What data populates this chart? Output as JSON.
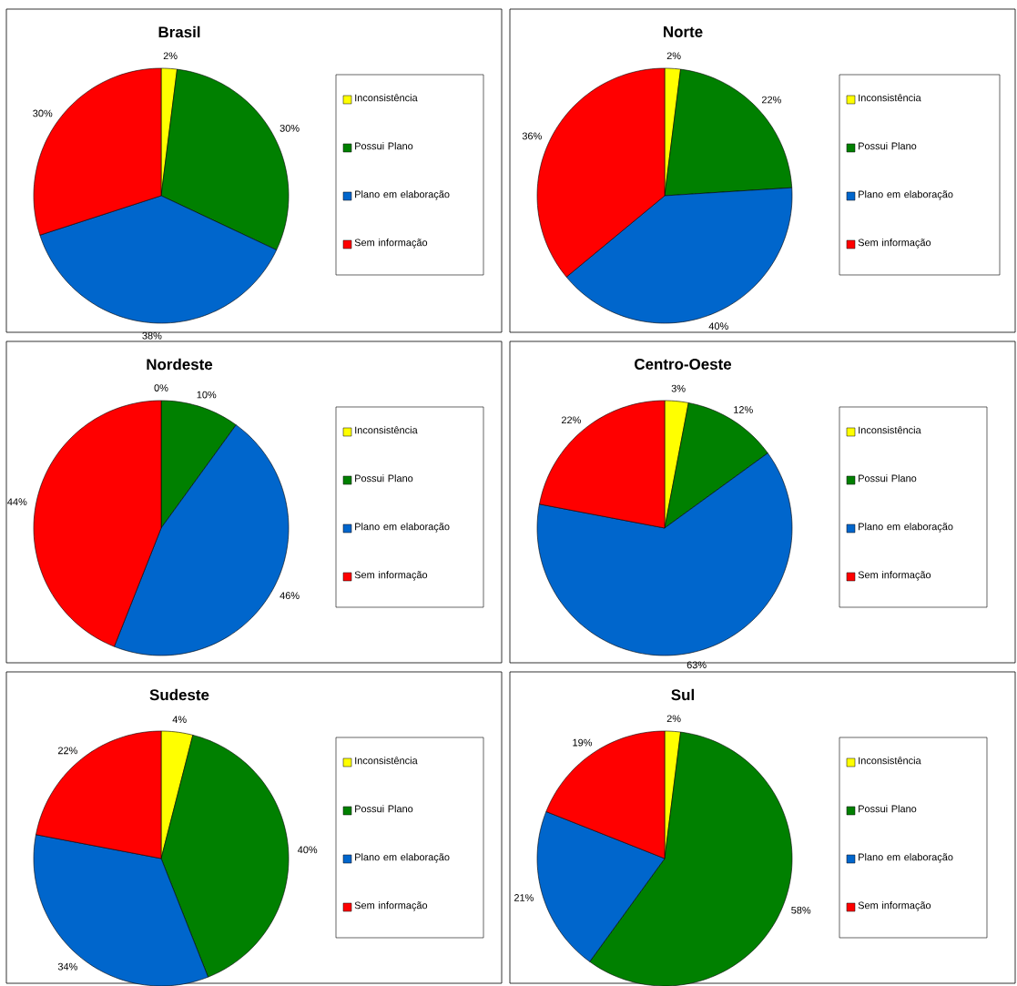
{
  "chart_data": [
    {
      "type": "pie",
      "title": "Brasil",
      "categories": [
        "Inconsistência",
        "Possui Plano",
        "Plano em elaboração",
        "Sem informação"
      ],
      "values": [
        2,
        30,
        38,
        30
      ],
      "colors": [
        "#ffff00",
        "#008000",
        "#0066cc",
        "#ff0000"
      ],
      "value_labels": [
        "2%",
        "30%",
        "38%",
        "30%"
      ],
      "legend": "right"
    },
    {
      "type": "pie",
      "title": "Norte",
      "categories": [
        "Inconsistência",
        "Possui Plano",
        "Plano em elaboração",
        "Sem informação"
      ],
      "values": [
        2,
        22,
        40,
        36
      ],
      "colors": [
        "#ffff00",
        "#008000",
        "#0066cc",
        "#ff0000"
      ],
      "value_labels": [
        "2%",
        "22%",
        "40%",
        "36%"
      ],
      "legend": "right"
    },
    {
      "type": "pie",
      "title": "Nordeste",
      "categories": [
        "Inconsistência",
        "Possui Plano",
        "Plano em elaboração",
        "Sem informação"
      ],
      "values": [
        0,
        10,
        46,
        44
      ],
      "colors": [
        "#ffff00",
        "#008000",
        "#0066cc",
        "#ff0000"
      ],
      "value_labels": [
        "0%",
        "10%",
        "46%",
        "44%"
      ],
      "legend": "right"
    },
    {
      "type": "pie",
      "title": "Centro-Oeste",
      "categories": [
        "Inconsistência",
        "Possui Plano",
        "Plano em elaboração",
        "Sem informação"
      ],
      "values": [
        3,
        12,
        63,
        22
      ],
      "colors": [
        "#ffff00",
        "#008000",
        "#0066cc",
        "#ff0000"
      ],
      "value_labels": [
        "3%",
        "12%",
        "63%",
        "22%"
      ],
      "legend": "right"
    },
    {
      "type": "pie",
      "title": "Sudeste",
      "categories": [
        "Inconsistência",
        "Possui Plano",
        "Plano em elaboração",
        "Sem informação"
      ],
      "values": [
        4,
        40,
        34,
        22
      ],
      "colors": [
        "#ffff00",
        "#008000",
        "#0066cc",
        "#ff0000"
      ],
      "value_labels": [
        "4%",
        "40%",
        "34%",
        "22%"
      ],
      "legend": "right"
    },
    {
      "type": "pie",
      "title": "Sul",
      "categories": [
        "Inconsistência",
        "Possui Plano",
        "Plano em elaboração",
        "Sem informação"
      ],
      "values": [
        2,
        58,
        21,
        19
      ],
      "colors": [
        "#ffff00",
        "#008000",
        "#0066cc",
        "#ff0000"
      ],
      "value_labels": [
        "2%",
        "58%",
        "21%",
        "19%"
      ],
      "legend": "right"
    }
  ]
}
